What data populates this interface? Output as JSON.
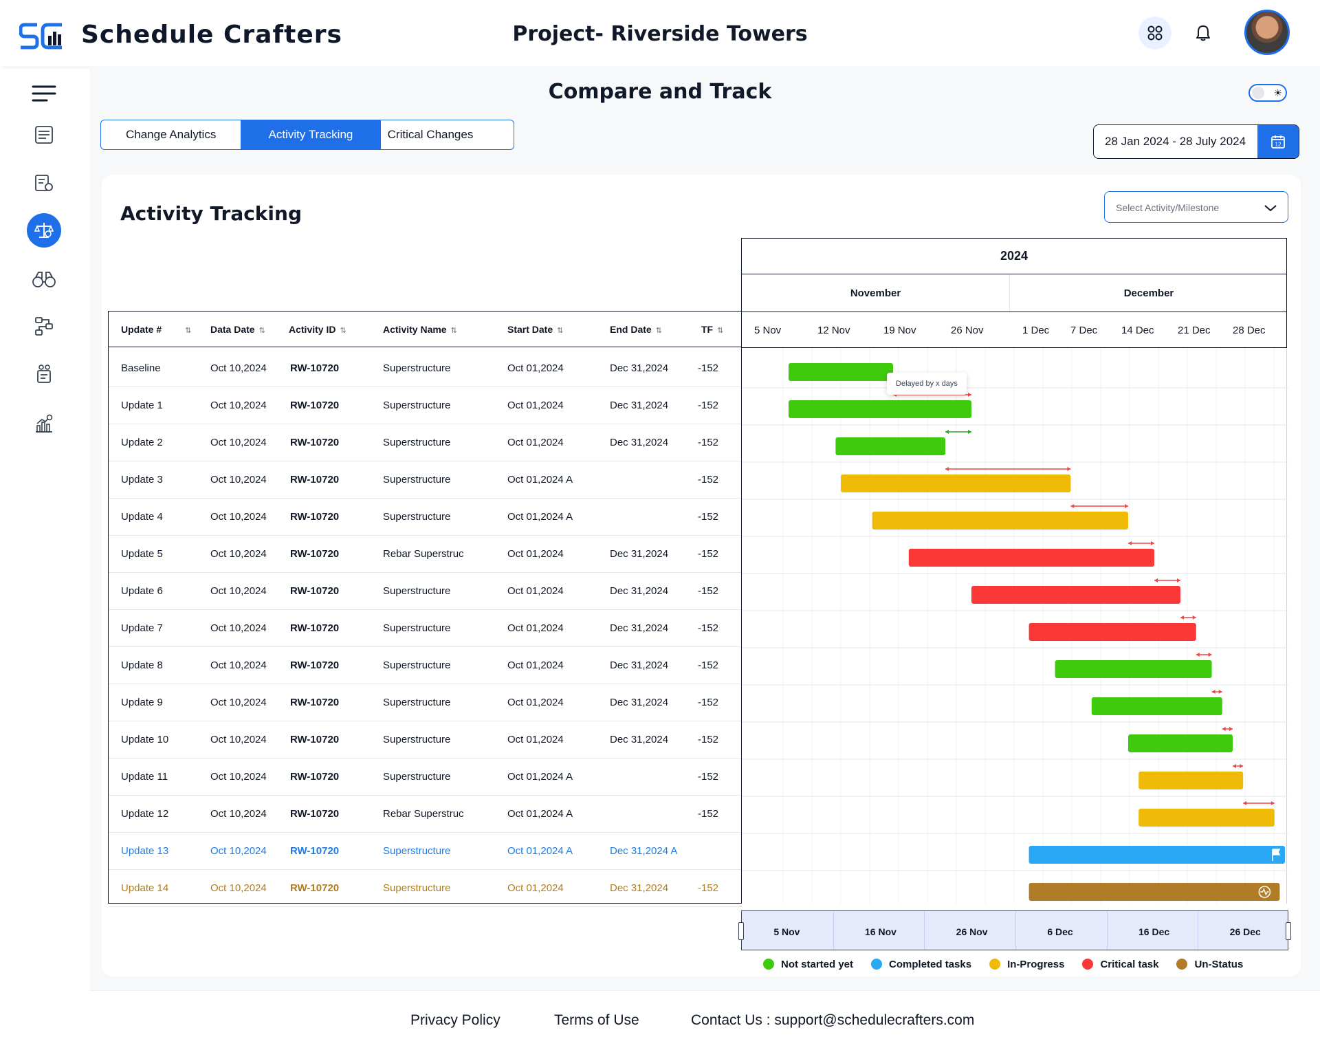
{
  "app": {
    "name": "Schedule Crafters",
    "logo_text": "SC"
  },
  "header": {
    "project_title": "Project- Riverside Towers"
  },
  "icons": {
    "apps": "grid-icon",
    "notifications": "bell-icon",
    "menu": "hamburger-icon",
    "calendar": "calendar-icon",
    "dropdown": "chevron-down-icon",
    "theme": "sun-icon"
  },
  "sidebar": {
    "items": [
      {
        "name": "schedule-list-icon"
      },
      {
        "name": "settings-sheet-icon"
      },
      {
        "name": "compare-scale-icon",
        "active": true
      },
      {
        "name": "binoculars-icon"
      },
      {
        "name": "workflow-icon"
      },
      {
        "name": "report-people-icon"
      },
      {
        "name": "analytics-chart-icon"
      }
    ]
  },
  "page": {
    "title": "Compare and Track"
  },
  "tabs": [
    {
      "label": "Change Analytics",
      "active": false
    },
    {
      "label": "Activity Tracking",
      "active": true
    },
    {
      "label": "Critical Changes",
      "active": false
    }
  ],
  "date_range": {
    "value": "28 Jan 2024 - 28 July 2024",
    "calendar_day": "12"
  },
  "card": {
    "title": "Activity Tracking"
  },
  "select": {
    "placeholder": "Select Activity/Milestone"
  },
  "table": {
    "columns": [
      "Update #",
      "Data Date",
      "Activity ID",
      "Activity Name",
      "Start Date",
      "End Date",
      "TF"
    ],
    "rows": [
      {
        "update": "Baseline",
        "data_date": "Oct 10,2024",
        "activity_id": "RW-10720",
        "activity_name": "Superstructure",
        "start": "Oct 01,2024",
        "end": "Dec 31,2024",
        "tf": "-152"
      },
      {
        "update": "Update 1",
        "data_date": "Oct 10,2024",
        "activity_id": "RW-10720",
        "activity_name": "Superstructure",
        "start": "Oct 01,2024",
        "end": "Dec 31,2024",
        "tf": "-152"
      },
      {
        "update": "Update 2",
        "data_date": "Oct 10,2024",
        "activity_id": "RW-10720",
        "activity_name": "Superstructure",
        "start": "Oct 01,2024",
        "end": "Dec 31,2024",
        "tf": "-152"
      },
      {
        "update": "Update 3",
        "data_date": "Oct 10,2024",
        "activity_id": "RW-10720",
        "activity_name": "Superstructure",
        "start": "Oct 01,2024 A",
        "end": "",
        "tf": "-152"
      },
      {
        "update": "Update 4",
        "data_date": "Oct 10,2024",
        "activity_id": "RW-10720",
        "activity_name": "Superstructure",
        "start": "Oct 01,2024 A",
        "end": "",
        "tf": "-152"
      },
      {
        "update": "Update 5",
        "data_date": "Oct 10,2024",
        "activity_id": "RW-10720",
        "activity_name": "Rebar Superstruc",
        "start": "Oct 01,2024",
        "end": "Dec 31,2024",
        "tf": "-152"
      },
      {
        "update": "Update 6",
        "data_date": "Oct 10,2024",
        "activity_id": "RW-10720",
        "activity_name": "Superstructure",
        "start": "Oct 01,2024",
        "end": "Dec 31,2024",
        "tf": "-152"
      },
      {
        "update": "Update 7",
        "data_date": "Oct 10,2024",
        "activity_id": "RW-10720",
        "activity_name": "Superstructure",
        "start": "Oct 01,2024",
        "end": "Dec 31,2024",
        "tf": "-152"
      },
      {
        "update": "Update 8",
        "data_date": "Oct 10,2024",
        "activity_id": "RW-10720",
        "activity_name": "Superstructure",
        "start": "Oct 01,2024",
        "end": "Dec 31,2024",
        "tf": "-152"
      },
      {
        "update": "Update 9",
        "data_date": "Oct 10,2024",
        "activity_id": "RW-10720",
        "activity_name": "Superstructure",
        "start": "Oct 01,2024",
        "end": "Dec 31,2024",
        "tf": "-152"
      },
      {
        "update": "Update 10",
        "data_date": "Oct 10,2024",
        "activity_id": "RW-10720",
        "activity_name": "Superstructure",
        "start": "Oct 01,2024",
        "end": "Dec 31,2024",
        "tf": "-152"
      },
      {
        "update": "Update 11",
        "data_date": "Oct 10,2024",
        "activity_id": "RW-10720",
        "activity_name": "Superstructure",
        "start": "Oct 01,2024 A",
        "end": "",
        "tf": "-152"
      },
      {
        "update": "Update 12",
        "data_date": "Oct 10,2024",
        "activity_id": "RW-10720",
        "activity_name": "Rebar Superstruc",
        "start": "Oct 01,2024 A",
        "end": "",
        "tf": "-152"
      },
      {
        "update": "Update 13",
        "data_date": "Oct 10,2024",
        "activity_id": "RW-10720",
        "activity_name": "Superstructure",
        "start": "Oct 01,2024 A",
        "end": "Dec 31,2024 A",
        "tf": ""
      },
      {
        "update": "Update 14",
        "data_date": "Oct 10,2024",
        "activity_id": "RW-10720",
        "activity_name": "Superstructure",
        "start": "Oct 01,2024",
        "end": "Dec 31,2024",
        "tf": "-152"
      }
    ]
  },
  "gantt": {
    "year": "2024",
    "months": [
      "November",
      "December"
    ],
    "weeks": [
      "5 Nov",
      "12 Nov",
      "19 Nov",
      "26 Nov",
      "1 Dec",
      "7 Dec",
      "14 Dec",
      "21 Dec",
      "28 Dec"
    ],
    "tooltip": "Delayed by x days",
    "colors": {
      "not_started": "#3ecb0c",
      "completed": "#2ba8f5",
      "in_progress": "#f0bb08",
      "critical": "#fb3838",
      "un_status": "#b07c28"
    },
    "bars": [
      {
        "status": "not_started",
        "start": 0.05,
        "end": 0.25
      },
      {
        "status": "not_started",
        "start": 0.05,
        "end": 0.4,
        "delay_from": 0.25,
        "delay_to": 0.4
      },
      {
        "status": "not_started",
        "start": 0.14,
        "end": 0.35,
        "delay_from": 0.35,
        "delay_to": 0.4,
        "delay_color": "#2fa329"
      },
      {
        "status": "in_progress",
        "start": 0.15,
        "end": 0.59,
        "delay_from": 0.35,
        "delay_to": 0.59
      },
      {
        "status": "in_progress",
        "start": 0.21,
        "end": 0.7,
        "delay_from": 0.59,
        "delay_to": 0.7
      },
      {
        "status": "critical",
        "start": 0.28,
        "end": 0.75,
        "delay_from": 0.7,
        "delay_to": 0.75
      },
      {
        "status": "critical",
        "start": 0.4,
        "end": 0.8,
        "delay_from": 0.75,
        "delay_to": 0.8
      },
      {
        "status": "critical",
        "start": 0.51,
        "end": 0.83,
        "delay_from": 0.8,
        "delay_to": 0.83
      },
      {
        "status": "not_started",
        "start": 0.56,
        "end": 0.86,
        "delay_from": 0.83,
        "delay_to": 0.86
      },
      {
        "status": "not_started",
        "start": 0.63,
        "end": 0.88,
        "delay_from": 0.86,
        "delay_to": 0.88
      },
      {
        "status": "not_started",
        "start": 0.7,
        "end": 0.9,
        "delay_from": 0.88,
        "delay_to": 0.9
      },
      {
        "status": "in_progress",
        "start": 0.72,
        "end": 0.92,
        "delay_from": 0.9,
        "delay_to": 0.92
      },
      {
        "status": "in_progress",
        "start": 0.72,
        "end": 0.98,
        "delay_from": 0.92,
        "delay_to": 0.98
      },
      {
        "status": "completed",
        "start": 0.51,
        "end": 1.0,
        "marker": "flag-icon"
      },
      {
        "status": "un_status",
        "start": 0.51,
        "end": 0.99,
        "marker": "pulse-icon"
      }
    ]
  },
  "scroller": {
    "labels": [
      "5 Nov",
      "16 Nov",
      "26 Nov",
      "6 Dec",
      "16 Dec",
      "26 Dec"
    ]
  },
  "legend": [
    {
      "label": "Not started yet",
      "color": "#3ecb0c"
    },
    {
      "label": "Completed tasks",
      "color": "#2ba8f5"
    },
    {
      "label": "In-Progress",
      "color": "#f0bb08"
    },
    {
      "label": "Critical task",
      "color": "#fb3838"
    },
    {
      "label": "Un-Status",
      "color": "#b07c28"
    }
  ],
  "footer": {
    "privacy": "Privacy Policy",
    "terms": "Terms of Use",
    "contact": "Contact Us : support@schedulecrafters.com"
  }
}
